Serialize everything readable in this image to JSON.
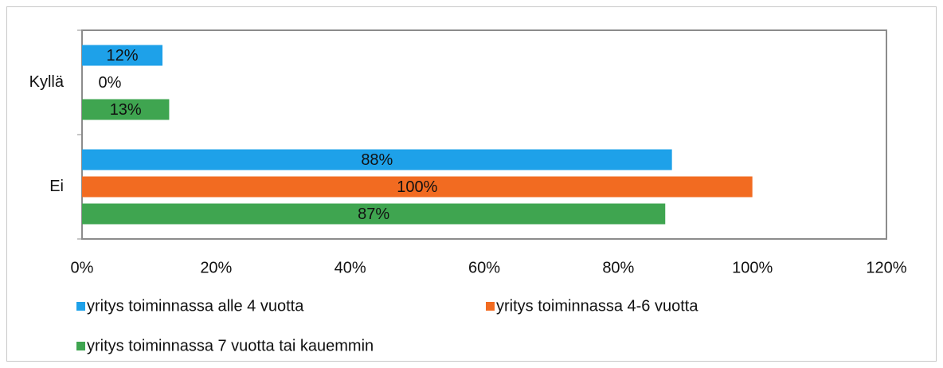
{
  "chart_data": {
    "type": "bar",
    "orientation": "horizontal",
    "categories": [
      "Kyllä",
      "Ei"
    ],
    "series": [
      {
        "name": "yritys toiminnassa alle 4 vuotta",
        "color": "#1ea1e9",
        "values": [
          12,
          88
        ],
        "value_labels": [
          "12%",
          "88%"
        ]
      },
      {
        "name": "yritys toiminnassa 4-6 vuotta",
        "color": "#f26b21",
        "values": [
          0,
          100
        ],
        "value_labels": [
          "0%",
          "100%"
        ]
      },
      {
        "name": "yritys toiminnassa 7 vuotta tai kauemmin",
        "color": "#3fa550",
        "values": [
          13,
          87
        ],
        "value_labels": [
          "13%",
          "87%"
        ]
      }
    ],
    "xlim": [
      0,
      120
    ],
    "xticks": [
      {
        "value": 0,
        "label": "0%"
      },
      {
        "value": 20,
        "label": "20%"
      },
      {
        "value": 40,
        "label": "40%"
      },
      {
        "value": 60,
        "label": "60%"
      },
      {
        "value": 80,
        "label": "80%"
      },
      {
        "value": 100,
        "label": "100%"
      },
      {
        "value": 120,
        "label": "120%"
      }
    ],
    "legend": "bottom",
    "grid": false
  }
}
